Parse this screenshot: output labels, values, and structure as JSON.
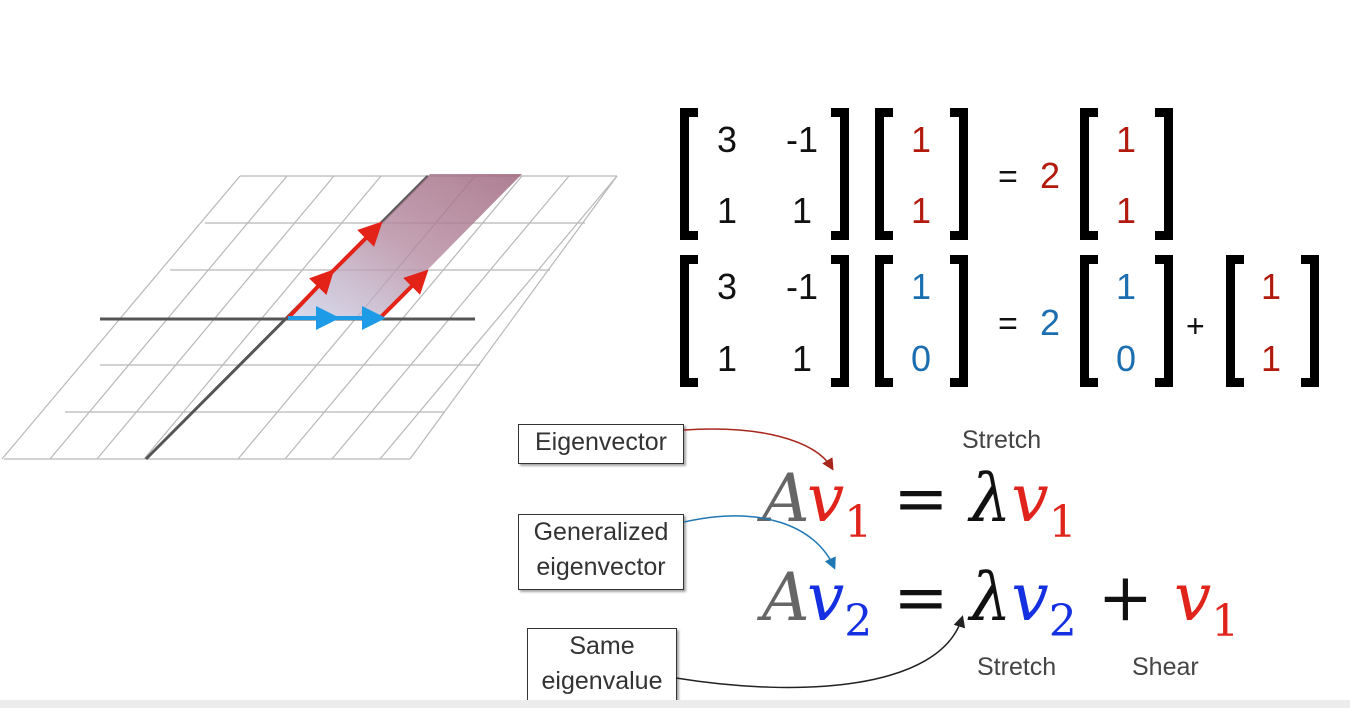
{
  "colors": {
    "red": "#b11a0d",
    "blue": "#1b6fb0",
    "eq_red": "#e0241b",
    "eq_blue": "#1530e0",
    "eq_gray": "#666666",
    "arrow_red": "#e32318",
    "arrow_blue": "#1d9be6",
    "grid": "#b8b8b8",
    "axis": "#555555",
    "plane": "#b07890"
  },
  "matrix": {
    "a11": "3",
    "a12": "-1",
    "a21": "1",
    "a22": "1"
  },
  "row1": {
    "v_top": "1",
    "v_bottom": "1",
    "equals": "=",
    "scalar": "2",
    "r_top": "1",
    "r_bottom": "1"
  },
  "row2": {
    "v_top": "1",
    "v_bottom": "0",
    "equals": "=",
    "scalar": "2",
    "r_top": "1",
    "r_bottom": "0",
    "plus": "+",
    "extra_top": "1",
    "extra_bottom": "1"
  },
  "labels": {
    "eigenvector": "Eigenvector",
    "generalized_line1": "Generalized",
    "generalized_line2": "eigenvector",
    "same_line1": "Same",
    "same_line2": "eigenvalue",
    "stretch_top": "Stretch",
    "stretch_bottom": "Stretch",
    "shear": "Shear"
  },
  "eq1": {
    "A": "A",
    "v": "v",
    "sub": "1",
    "equals": "=",
    "lambda": "λ",
    "v2": "v",
    "sub2": "1"
  },
  "eq2": {
    "A": "A",
    "v": "v",
    "sub": "2",
    "equals": "=",
    "lambda": "λ",
    "v2": "v",
    "sub2": "2",
    "plus": "+",
    "v3": "v",
    "sub3": "1"
  }
}
